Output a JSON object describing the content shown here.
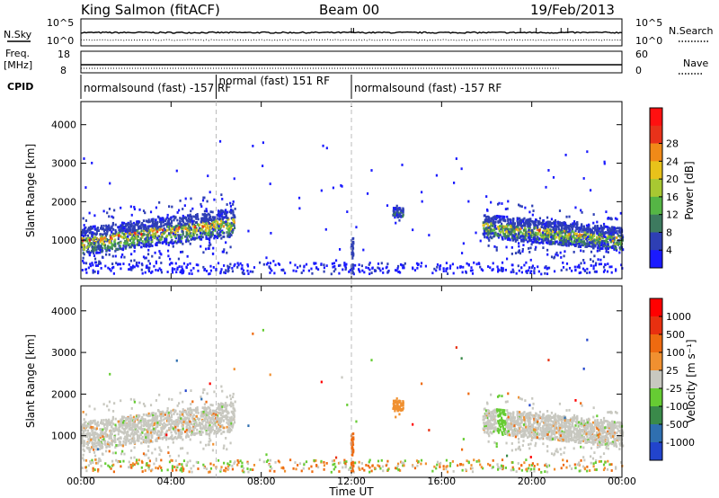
{
  "header": {
    "station": "King Salmon (fitACF)",
    "beam": "Beam 00",
    "date": "19/Feb/2013"
  },
  "top_panels": {
    "nsky_label": "N.Sky",
    "nsky_ticks": [
      "10^5",
      "10^0"
    ],
    "nsearch_label": "N.Search",
    "nsearch_ticks": [
      "10^5",
      "10^0"
    ],
    "freq_label": "Freq.",
    "freq_unit": "[MHz]",
    "freq_ticks": [
      "18",
      "8"
    ],
    "nave_label": "Nave",
    "nave_ticks": [
      "60",
      "0"
    ],
    "cpid_label": "CPID"
  },
  "cpid_segments": [
    {
      "start": 0,
      "end": 6,
      "label": "normalsound (fast) -157 RF"
    },
    {
      "start": 6,
      "end": 12,
      "label": "normal (fast) 151 RF"
    },
    {
      "start": 12,
      "end": 24,
      "label": "normalsound (fast) -157 RF"
    }
  ],
  "axes": {
    "ylabel": "Slant Range [km]",
    "xlabel": "Time UT",
    "ylim": [
      0,
      4600
    ],
    "yticks": [
      "1000",
      "2000",
      "3000",
      "4000"
    ],
    "xticks": [
      "00:00",
      "04:00",
      "08:00",
      "12:00",
      "16:00",
      "20:00",
      "00:00"
    ]
  },
  "colorbars": {
    "power": {
      "label": "Power [dB]",
      "ticks": [
        "4",
        "8",
        "12",
        "16",
        "20",
        "24",
        "28"
      ],
      "colors": [
        "#1a1aff",
        "#2e3fb4",
        "#3d7a5f",
        "#55b545",
        "#a8c832",
        "#e8c21a",
        "#f08a18",
        "#e8321a",
        "#ff1010"
      ]
    },
    "velocity": {
      "label": "Velocity [m s⁻¹]",
      "ticks": [
        "1000",
        "500",
        "100",
        "25",
        "-25",
        "-100",
        "-500",
        "-1000"
      ],
      "colors": [
        "#2244cc",
        "#2f6fb0",
        "#3a8a4a",
        "#66cc33",
        "#c8c8c0",
        "#f09030",
        "#ee6a10",
        "#e83010",
        "#ff0000"
      ]
    }
  },
  "chart_data": [
    {
      "type": "heatmap",
      "name": "power",
      "x_range_hours": [
        0,
        24
      ],
      "y_range_km": [
        0,
        4600
      ],
      "echo_regions": [
        {
          "t_start": 0.0,
          "t_end": 6.8,
          "range_center_start": 1000,
          "range_center_end": 1500,
          "range_width": 700,
          "peak_db": 24
        },
        {
          "t_start": 17.8,
          "t_end": 24.0,
          "range_center_start": 1400,
          "range_center_end": 1050,
          "range_width": 600,
          "peak_db": 20
        },
        {
          "t_start": 13.8,
          "t_end": 14.3,
          "range_center_start": 1750,
          "range_center_end": 1750,
          "range_width": 250,
          "peak_db": 10
        }
      ],
      "colorbar_min": 0,
      "colorbar_max": 30
    },
    {
      "type": "heatmap",
      "name": "velocity",
      "x_range_hours": [
        0,
        24
      ],
      "y_range_km": [
        0,
        4600
      ],
      "colorbar_min": -1000,
      "colorbar_max": 1000
    }
  ]
}
